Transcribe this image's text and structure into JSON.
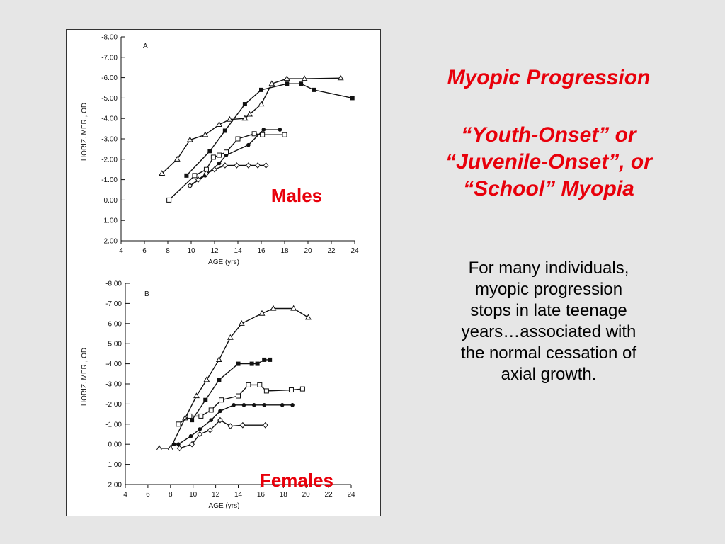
{
  "slide": {
    "title": "Myopic Progression",
    "subtitle": "“Youth-Onset” or\n“Juvenile-Onset”, or\n“School” Myopia",
    "body": "For many individuals,\nmyopic progression\nstops in late teenage\nyears…associated with\nthe normal cessation of\naxial growth."
  },
  "colors": {
    "accent": "#e8000b",
    "ink": "#111111",
    "background": "#e6e6e6"
  },
  "chart_data": [
    {
      "type": "line",
      "panel_label": "A",
      "overlay_label": "Males",
      "xlabel": "AGE (yrs)",
      "ylabel": "HORIZ. MER., OD",
      "xlim": [
        4,
        24
      ],
      "ylim": [
        2.0,
        -8.0
      ],
      "y_inverted": true,
      "x_ticks": [
        4,
        6,
        8,
        10,
        12,
        14,
        16,
        18,
        20,
        22,
        24
      ],
      "x_tick_labels": [
        "4",
        "6",
        "8",
        "10",
        "12",
        "14",
        "16",
        "18",
        "20",
        "22",
        "24"
      ],
      "y_ticks": [
        -8,
        -7,
        -6,
        -5,
        -4,
        -3,
        -2,
        -1,
        0,
        1,
        2
      ],
      "y_tick_labels": [
        "-8.00",
        "-7.00",
        "-6.00",
        "-5.00",
        "-4.00",
        "-3.00",
        "-2.00",
        "-1.00",
        "0.00",
        "1.00",
        "2.00"
      ],
      "series": [
        {
          "marker": "open-triangle",
          "points": [
            [
              7.5,
              -1.3
            ],
            [
              8.8,
              -2.0
            ],
            [
              9.9,
              -2.95
            ],
            [
              11.2,
              -3.2
            ],
            [
              12.4,
              -3.7
            ],
            [
              13.3,
              -3.95
            ],
            [
              14.6,
              -4.0
            ],
            [
              15.0,
              -4.2
            ],
            [
              16.0,
              -4.7
            ],
            [
              16.9,
              -5.7
            ],
            [
              18.2,
              -5.95
            ],
            [
              19.7,
              -5.95
            ],
            [
              22.8,
              -5.98
            ]
          ]
        },
        {
          "marker": "filled-square",
          "points": [
            [
              9.6,
              -1.2
            ],
            [
              11.6,
              -2.4
            ],
            [
              12.9,
              -3.4
            ],
            [
              14.6,
              -4.7
            ],
            [
              16.0,
              -5.4
            ],
            [
              18.2,
              -5.7
            ],
            [
              19.4,
              -5.7
            ],
            [
              20.5,
              -5.4
            ],
            [
              23.8,
              -5.0
            ]
          ]
        },
        {
          "marker": "filled-circle",
          "points": [
            [
              9.9,
              -0.7
            ],
            [
              11.2,
              -1.2
            ],
            [
              12.4,
              -1.8
            ],
            [
              13.0,
              -2.2
            ],
            [
              14.9,
              -2.7
            ],
            [
              16.2,
              -3.45
            ],
            [
              17.6,
              -3.45
            ]
          ]
        },
        {
          "marker": "open-square",
          "points": [
            [
              8.1,
              0.0
            ],
            [
              10.3,
              -1.2
            ],
            [
              11.3,
              -1.5
            ],
            [
              11.9,
              -2.1
            ],
            [
              12.4,
              -2.2
            ],
            [
              13.0,
              -2.35
            ],
            [
              14.0,
              -3.0
            ],
            [
              15.4,
              -3.25
            ],
            [
              16.1,
              -3.2
            ],
            [
              18.0,
              -3.2
            ]
          ]
        },
        {
          "marker": "open-diamond",
          "points": [
            [
              9.9,
              -0.7
            ],
            [
              10.6,
              -1.0
            ],
            [
              11.3,
              -1.3
            ],
            [
              12.0,
              -1.5
            ],
            [
              12.9,
              -1.7
            ],
            [
              13.9,
              -1.7
            ],
            [
              14.9,
              -1.7
            ],
            [
              15.7,
              -1.7
            ],
            [
              16.4,
              -1.7
            ]
          ]
        }
      ]
    },
    {
      "type": "line",
      "panel_label": "B",
      "overlay_label": "Females",
      "xlabel": "AGE (yrs)",
      "ylabel": "HORIZ. MER., OD",
      "xlim": [
        4,
        24
      ],
      "ylim": [
        2.0,
        -8.0
      ],
      "y_inverted": true,
      "x_ticks": [
        4,
        6,
        8,
        10,
        12,
        14,
        16,
        18,
        20,
        22,
        24
      ],
      "x_tick_labels": [
        "4",
        "6",
        "8",
        "10",
        "12",
        "14",
        "16",
        "18",
        "20",
        "22",
        "24"
      ],
      "y_ticks": [
        -8,
        -7,
        -6,
        -5,
        -4,
        -3,
        -2,
        -1,
        0,
        1,
        2
      ],
      "y_tick_labels": [
        "-8.00",
        "-7.00",
        "-6.00",
        "-5.00",
        "-4.00",
        "-3.00",
        "-2.00",
        "-1.00",
        "0.00",
        "1.00",
        "2.00"
      ],
      "series": [
        {
          "marker": "open-triangle",
          "points": [
            [
              7.0,
              0.2
            ],
            [
              8.0,
              0.2
            ],
            [
              9.3,
              -1.3
            ],
            [
              10.3,
              -2.4
            ],
            [
              11.2,
              -3.2
            ],
            [
              12.3,
              -4.2
            ],
            [
              13.3,
              -5.3
            ],
            [
              14.3,
              -6.0
            ],
            [
              16.1,
              -6.5
            ],
            [
              17.1,
              -6.75
            ],
            [
              18.9,
              -6.75
            ],
            [
              20.2,
              -6.3
            ]
          ]
        },
        {
          "marker": "filled-square",
          "points": [
            [
              9.9,
              -1.2
            ],
            [
              11.1,
              -2.2
            ],
            [
              12.3,
              -3.2
            ],
            [
              14.0,
              -4.0
            ],
            [
              15.2,
              -4.0
            ],
            [
              15.7,
              -4.0
            ],
            [
              16.3,
              -4.2
            ],
            [
              16.8,
              -4.2
            ]
          ]
        },
        {
          "marker": "filled-circle",
          "points": [
            [
              8.3,
              0.0
            ],
            [
              8.7,
              0.0
            ],
            [
              9.8,
              -0.4
            ],
            [
              10.6,
              -0.75
            ],
            [
              11.6,
              -1.2
            ],
            [
              12.4,
              -1.65
            ],
            [
              13.6,
              -1.95
            ],
            [
              14.5,
              -1.95
            ],
            [
              15.4,
              -1.95
            ],
            [
              16.3,
              -1.95
            ],
            [
              17.9,
              -1.95
            ],
            [
              18.8,
              -1.95
            ]
          ]
        },
        {
          "marker": "open-square",
          "points": [
            [
              8.7,
              -1.0
            ],
            [
              9.7,
              -1.4
            ],
            [
              10.7,
              -1.4
            ],
            [
              11.6,
              -1.7
            ],
            [
              12.5,
              -2.2
            ],
            [
              14.0,
              -2.4
            ],
            [
              14.9,
              -2.95
            ],
            [
              15.9,
              -2.95
            ],
            [
              16.5,
              -2.65
            ],
            [
              18.7,
              -2.7
            ],
            [
              19.7,
              -2.75
            ]
          ]
        },
        {
          "marker": "open-diamond",
          "points": [
            [
              8.8,
              0.2
            ],
            [
              9.9,
              0.0
            ],
            [
              10.6,
              -0.5
            ],
            [
              11.5,
              -0.7
            ],
            [
              12.4,
              -1.2
            ],
            [
              13.3,
              -0.9
            ],
            [
              14.4,
              -0.95
            ],
            [
              16.4,
              -0.95
            ]
          ]
        }
      ]
    }
  ]
}
